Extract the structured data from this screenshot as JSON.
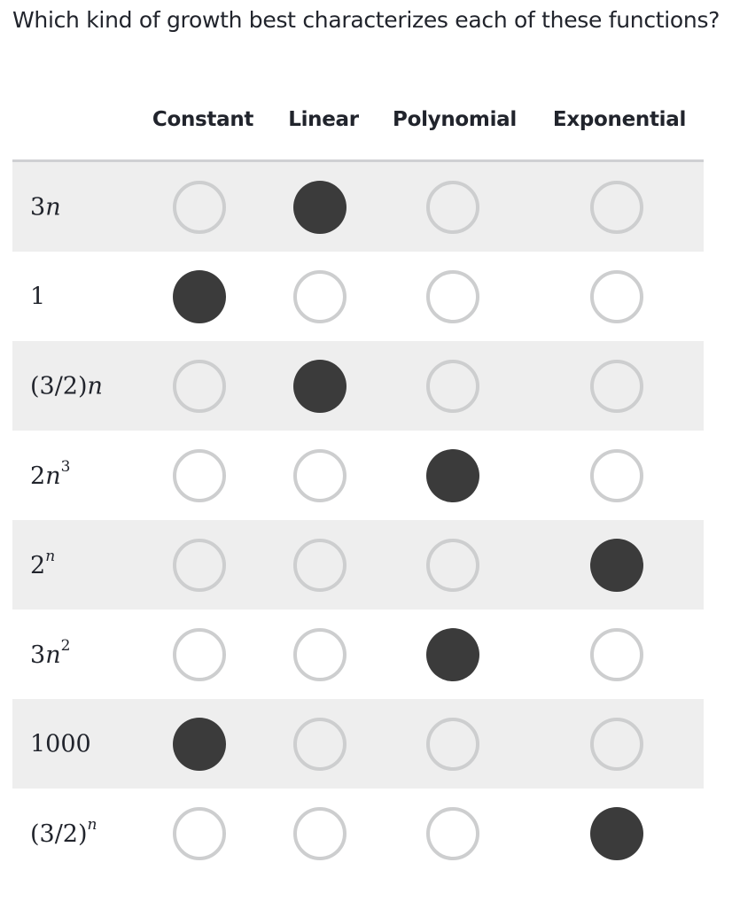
{
  "question": "Which kind of growth best characterizes each of these functions?",
  "columns": [
    "Constant",
    "Linear",
    "Polynomial",
    "Exponential"
  ],
  "rows": [
    {
      "parts": [
        {
          "t": "3"
        },
        {
          "t": "n",
          "v": true
        }
      ],
      "selected": "Linear"
    },
    {
      "parts": [
        {
          "t": "1"
        }
      ],
      "selected": "Constant"
    },
    {
      "parts": [
        {
          "t": "(3/2)"
        },
        {
          "t": "n",
          "v": true
        }
      ],
      "selected": "Linear"
    },
    {
      "parts": [
        {
          "t": "2"
        },
        {
          "t": "n",
          "v": true
        },
        {
          "t": "3",
          "sup": true
        }
      ],
      "selected": "Polynomial"
    },
    {
      "parts": [
        {
          "t": "2"
        },
        {
          "t": "n",
          "v": true,
          "sup": true
        }
      ],
      "selected": "Exponential"
    },
    {
      "parts": [
        {
          "t": "3"
        },
        {
          "t": "n",
          "v": true
        },
        {
          "t": "2",
          "sup": true
        }
      ],
      "selected": "Polynomial"
    },
    {
      "parts": [
        {
          "t": "1000"
        }
      ],
      "selected": "Constant"
    },
    {
      "parts": [
        {
          "t": "(3/2)"
        },
        {
          "t": "n",
          "v": true,
          "sup": true
        }
      ],
      "selected": "Exponential"
    }
  ],
  "colors": {
    "radio_border": "#cdcecf",
    "radio_fill": "#3b3b3b",
    "row_shade": "#eeeeee",
    "header_rule": "#cfd0d3",
    "text": "#21242c"
  }
}
